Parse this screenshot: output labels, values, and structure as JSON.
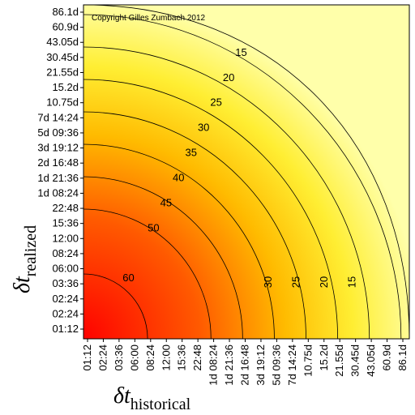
{
  "chart_data": {
    "type": "heatmap",
    "title": "",
    "annotation": "Copyright Gilles Zumbach 2012",
    "xlabel": "δt",
    "xlabel_subscript": "historical",
    "ylabel": "δt",
    "ylabel_subscript": "realized",
    "categories": [
      "01:12",
      "02:24",
      "03:36",
      "06:00",
      "08:24",
      "12:00",
      "15:36",
      "22:48",
      "1d 08:24",
      "1d 21:36",
      "2d 16:48",
      "3d 19:12",
      "5d 09:36",
      "7d 14:24",
      "10.75d",
      "15.2d",
      "21.55d",
      "30.45d",
      "43.05d",
      "60.9d",
      "86.1d"
    ],
    "y_categories": [
      "01:12",
      "02:24",
      "02:24",
      "03:36",
      "06:00",
      "08:24",
      "12:00",
      "15:36",
      "22:48",
      "1d 08:24",
      "1d 21:36",
      "2d 16:48",
      "3d 19:12",
      "5d 09:36",
      "7d 14:24",
      "10.75d",
      "15.2d",
      "21.55d",
      "30.45d",
      "43.05d",
      "60.9d",
      "86.1d"
    ],
    "contour_levels": [
      15,
      20,
      25,
      30,
      35,
      40,
      45,
      50,
      60
    ],
    "contour_labels": [
      "15",
      "20",
      "25",
      "30",
      "35",
      "40",
      "45",
      "50",
      "60",
      "30",
      "25",
      "20",
      "15"
    ],
    "value_range": [
      10,
      65
    ],
    "colors": {
      "high": "#ff0000",
      "mid": "#ff9900",
      "low": "#ffff99",
      "frame": "#000000"
    },
    "grid": false
  }
}
